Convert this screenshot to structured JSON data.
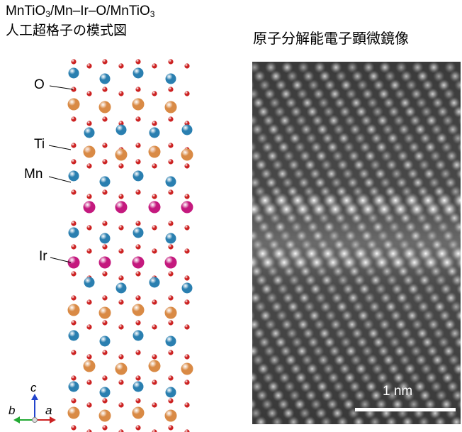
{
  "title_left": {
    "line1_parts": [
      "MnTiO",
      "3",
      "/Mn–Ir–O/MnTiO",
      "3"
    ],
    "line2": "人工超格子の模式図"
  },
  "title_right": "原子分解能電子顕微鏡像",
  "atom_labels": {
    "O": "O",
    "Ti": "Ti",
    "Mn": "Mn",
    "Ir": "Ir"
  },
  "axes": {
    "c": "c",
    "b": "b",
    "a": "a"
  },
  "scale_bar": "1 nm",
  "colors": {
    "oxygen": "#cc2222",
    "titanium": "#d98a45",
    "manganese": "#2a7fb0",
    "iridium": "#c4197e",
    "axis_c": "#2244cc",
    "axis_a": "#cc2222",
    "axis_b": "#22aa33"
  }
}
